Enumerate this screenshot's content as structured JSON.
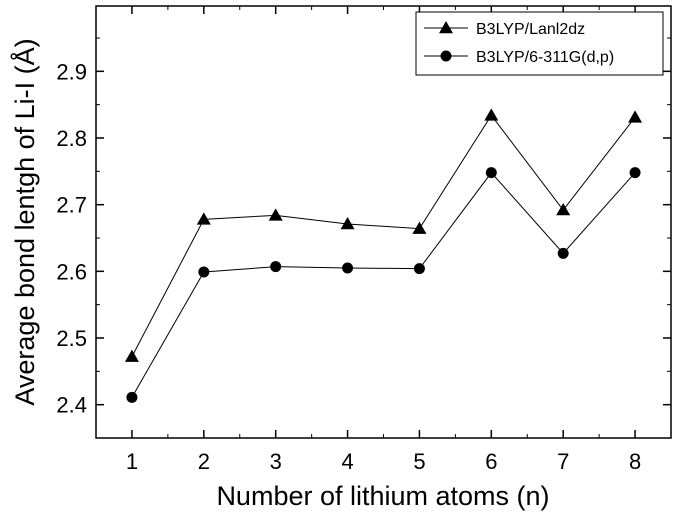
{
  "chart_data": {
    "type": "line",
    "title": "",
    "xlabel": "Number of lithium atoms (n)",
    "ylabel": "Average bond lentgh of Li-I (Å)",
    "x": [
      1,
      2,
      3,
      4,
      5,
      6,
      7,
      8
    ],
    "xlim": [
      0.5,
      8.5
    ],
    "ylim": [
      2.35,
      2.998
    ],
    "xticks": [
      "1",
      "2",
      "3",
      "4",
      "5",
      "6",
      "7",
      "8"
    ],
    "yticks": [
      "2.4",
      "2.5",
      "2.6",
      "2.7",
      "2.8",
      "2.9"
    ],
    "grid": false,
    "legend_position": "top-right",
    "series": [
      {
        "name": "B3LYP/Lanl2dz",
        "marker": "triangle",
        "color": "#000000",
        "values": [
          2.472,
          2.678,
          2.684,
          2.671,
          2.664,
          2.834,
          2.692,
          2.831
        ]
      },
      {
        "name": "B3LYP/6-311G(d,p)",
        "marker": "circle",
        "color": "#000000",
        "values": [
          2.411,
          2.599,
          2.607,
          2.605,
          2.604,
          2.748,
          2.627,
          2.748
        ]
      }
    ]
  }
}
